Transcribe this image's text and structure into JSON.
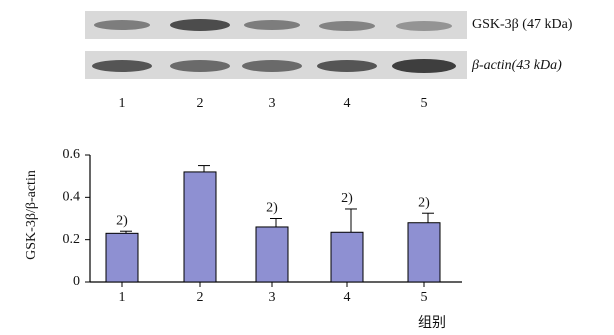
{
  "blot": {
    "rows": [
      "GSK-3β (47 kDa)",
      "β-actin(43 kDa)"
    ],
    "lanes": [
      "1",
      "2",
      "3",
      "4",
      "5"
    ]
  },
  "chart_data": {
    "type": "bar",
    "y_label": "GSK-3β/β-actin",
    "x_label": "组别",
    "categories": [
      "1",
      "2",
      "3",
      "4",
      "5"
    ],
    "values": [
      0.23,
      0.52,
      0.26,
      0.235,
      0.28
    ],
    "errors": [
      0.01,
      0.03,
      0.04,
      0.11,
      0.045
    ],
    "annotations": [
      "2)",
      null,
      "2)",
      "2)",
      "2)"
    ],
    "color": "#8e90d2",
    "ylim": [
      0,
      0.6
    ],
    "yticks": [
      0,
      0.2,
      0.4,
      0.6
    ],
    "grid": false
  }
}
